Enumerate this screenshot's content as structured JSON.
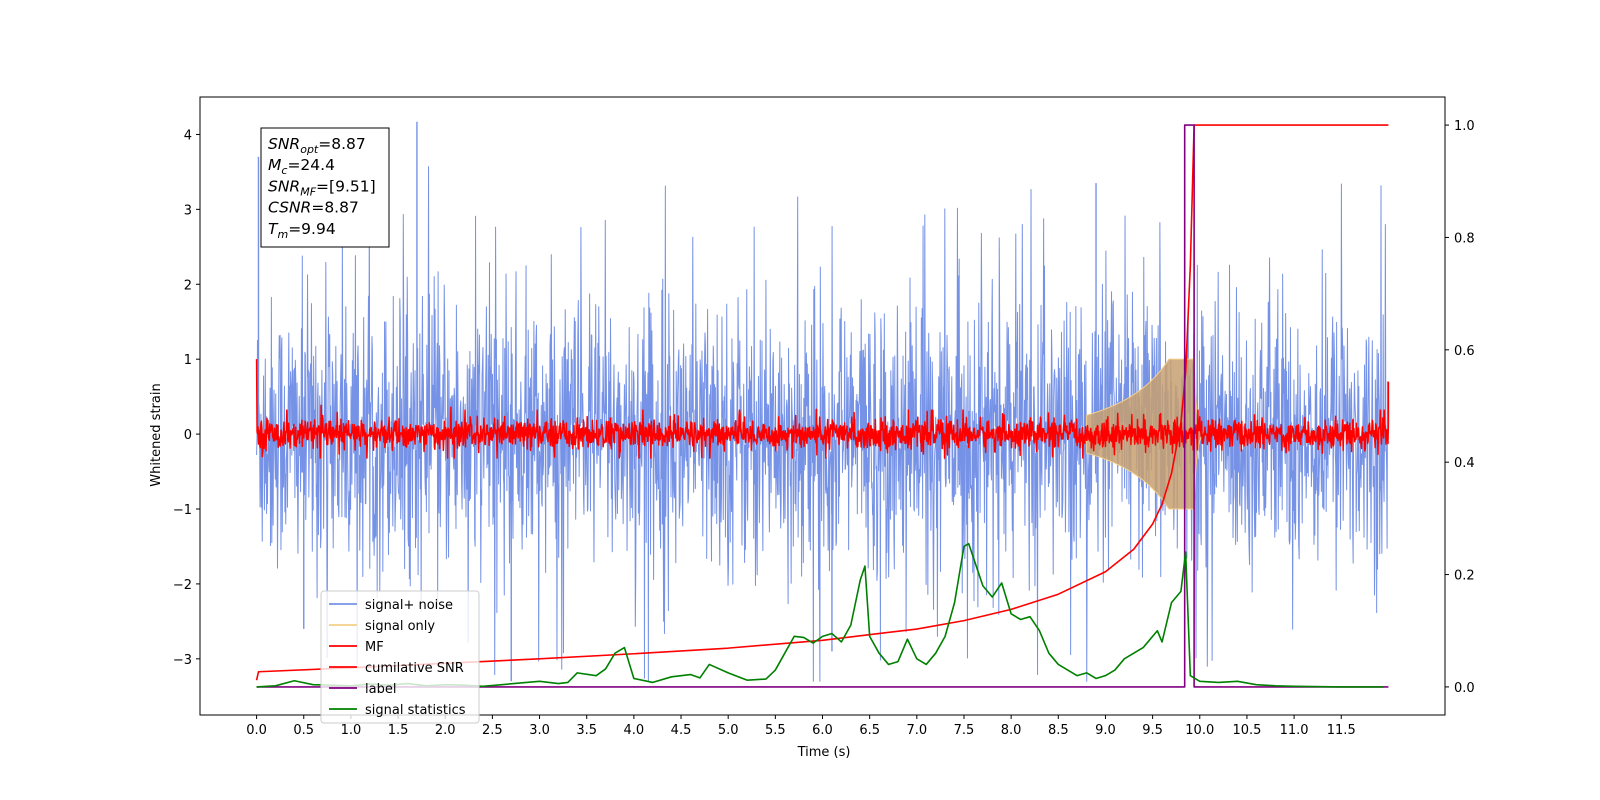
{
  "chart_data": {
    "type": "line",
    "title": "",
    "xlabel": "Time (s)",
    "ylabel": "Whitened strain",
    "xlim": [
      -0.6,
      12.6
    ],
    "ylim": [
      -3.75,
      4.5
    ],
    "y2lim": [
      -0.05,
      1.05
    ],
    "xticks": [
      "0.0",
      "0.5",
      "1.0",
      "1.5",
      "2.0",
      "2.5",
      "3.0",
      "3.5",
      "4.0",
      "4.5",
      "5.0",
      "5.5",
      "6.0",
      "6.5",
      "7.0",
      "7.5",
      "8.0",
      "8.5",
      "9.0",
      "9.5",
      "10.0",
      "10.5",
      "11.0",
      "11.5"
    ],
    "yticks": [
      "−3",
      "−2",
      "−1",
      "0",
      "1",
      "2",
      "3",
      "4"
    ],
    "y2ticks": [
      "0.0",
      "0.2",
      "0.4",
      "0.6",
      "0.8",
      "1.0"
    ],
    "grid": false,
    "legend_position": "lower-left",
    "annotation": [
      {
        "sym": "SNR",
        "sub": "opt",
        "value": "=8.87"
      },
      {
        "sym": "M",
        "sub": "c",
        "value": "=24.4"
      },
      {
        "sym": "SNR",
        "sub": "MF",
        "value": "=[9.51]"
      },
      {
        "sym": "CSNR",
        "sub": "",
        "value": "=8.87"
      },
      {
        "sym": "T",
        "sub": "m",
        "value": "=9.94"
      }
    ],
    "series": [
      {
        "name": "signal+ noise",
        "color": "#7592e6",
        "axis": "left",
        "style": "noise",
        "x_range": [
          0,
          12
        ],
        "spread_1sigma": 0.9,
        "max": 4.17,
        "min": -3.3
      },
      {
        "name": "signal only",
        "color": "#f5d08a",
        "axis": "left",
        "style": "chirp",
        "merger_time": 9.94,
        "peak_amplitude": 1.0,
        "fill_color": "#c8a070"
      },
      {
        "name": "MF",
        "color": "#ff0000",
        "axis": "left",
        "style": "noise",
        "x_range": [
          0,
          12
        ],
        "spread_1sigma": 0.1,
        "start_value": 1.0,
        "end_value": 0.7
      },
      {
        "name": "cumilative SNR",
        "color": "#ff0000",
        "axis": "right",
        "x": [
          0.0,
          0.02,
          1.0,
          2.0,
          3.0,
          4.0,
          5.0,
          6.0,
          7.0,
          7.5,
          8.0,
          8.5,
          9.0,
          9.3,
          9.5,
          9.6,
          9.7,
          9.8,
          9.85,
          9.9,
          9.94,
          12.0
        ],
        "y": [
          0.012,
          0.027,
          0.034,
          0.042,
          0.05,
          0.059,
          0.069,
          0.083,
          0.103,
          0.118,
          0.138,
          0.165,
          0.205,
          0.245,
          0.29,
          0.325,
          0.38,
          0.47,
          0.56,
          0.75,
          1.0,
          1.0
        ]
      },
      {
        "name": "label",
        "color": "#800080",
        "axis": "right",
        "x": [
          0.0,
          9.84,
          9.84,
          9.94,
          9.94,
          12.0
        ],
        "y": [
          0.0,
          0.0,
          1.0,
          1.0,
          0.0,
          0.0
        ]
      },
      {
        "name": "signal statistics",
        "color": "#008000",
        "axis": "right",
        "x": [
          0.0,
          0.2,
          0.4,
          0.6,
          0.8,
          1.0,
          1.2,
          1.4,
          1.6,
          1.8,
          2.0,
          2.2,
          2.4,
          2.6,
          2.8,
          3.0,
          3.2,
          3.3,
          3.4,
          3.6,
          3.7,
          3.8,
          3.9,
          4.0,
          4.2,
          4.4,
          4.6,
          4.7,
          4.8,
          5.0,
          5.2,
          5.4,
          5.5,
          5.6,
          5.7,
          5.8,
          5.9,
          6.0,
          6.1,
          6.2,
          6.3,
          6.4,
          6.45,
          6.5,
          6.6,
          6.7,
          6.8,
          6.9,
          7.0,
          7.1,
          7.2,
          7.3,
          7.4,
          7.5,
          7.55,
          7.6,
          7.7,
          7.8,
          7.9,
          8.0,
          8.1,
          8.2,
          8.3,
          8.4,
          8.5,
          8.6,
          8.7,
          8.8,
          8.9,
          9.0,
          9.1,
          9.2,
          9.3,
          9.4,
          9.5,
          9.55,
          9.6,
          9.7,
          9.8,
          9.85,
          9.9,
          10.0,
          10.2,
          10.4,
          10.6,
          10.8,
          11.0,
          11.5,
          11.95
        ],
        "y": [
          0.0,
          0.002,
          0.011,
          0.004,
          0.003,
          0.002,
          0.005,
          0.003,
          0.006,
          0.002,
          0.004,
          0.003,
          0.001,
          0.004,
          0.007,
          0.01,
          0.006,
          0.008,
          0.025,
          0.02,
          0.032,
          0.06,
          0.07,
          0.015,
          0.008,
          0.018,
          0.022,
          0.016,
          0.04,
          0.025,
          0.012,
          0.014,
          0.03,
          0.06,
          0.09,
          0.088,
          0.078,
          0.09,
          0.095,
          0.08,
          0.11,
          0.19,
          0.215,
          0.09,
          0.06,
          0.04,
          0.045,
          0.085,
          0.05,
          0.04,
          0.06,
          0.09,
          0.15,
          0.25,
          0.255,
          0.23,
          0.18,
          0.16,
          0.185,
          0.13,
          0.12,
          0.125,
          0.1,
          0.06,
          0.04,
          0.03,
          0.02,
          0.025,
          0.015,
          0.02,
          0.03,
          0.05,
          0.06,
          0.07,
          0.09,
          0.1,
          0.08,
          0.15,
          0.17,
          0.24,
          0.02,
          0.01,
          0.008,
          0.01,
          0.004,
          0.002,
          0.001,
          0.0,
          0.0
        ]
      }
    ]
  }
}
